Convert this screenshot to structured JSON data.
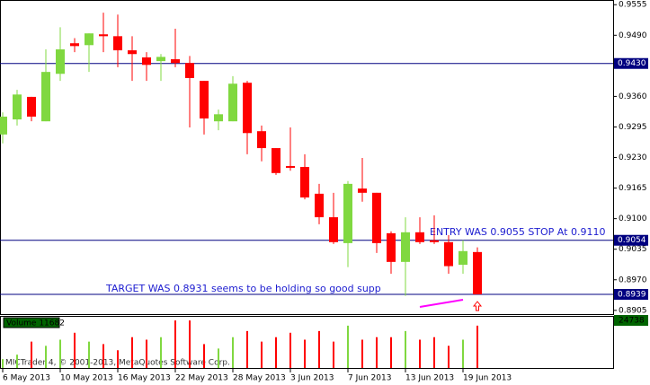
{
  "chart_data": [
    {
      "type": "candlestick",
      "categories": [
        "6 May 2013",
        null,
        null,
        null,
        "10 May 2013",
        null,
        null,
        null,
        "16 May 2013",
        null,
        null,
        null,
        "22 May 2013",
        null,
        null,
        null,
        "28 May 2013",
        null,
        null,
        null,
        "3 Jun 2013",
        null,
        null,
        null,
        "7 Jun 2013",
        null,
        null,
        null,
        "13 Jun 2013",
        null,
        null,
        null,
        "19 Jun 2013",
        null
      ],
      "open": [
        0.9279,
        0.9311,
        0.9359,
        0.9307,
        0.9408,
        0.9473,
        0.9469,
        0.9492,
        0.9488,
        0.9458,
        0.9443,
        0.9435,
        0.9439,
        0.9431,
        0.9393,
        0.9307,
        0.9307,
        0.9389,
        0.9286,
        0.925,
        0.9212,
        0.921,
        0.9153,
        0.9103,
        0.9048,
        0.9164,
        0.9155,
        0.9069,
        0.9008,
        0.9071,
        0.9054,
        0.905,
        0.9002,
        0.9029
      ],
      "high": [
        0.9326,
        0.9374,
        0.9359,
        0.946,
        0.9507,
        0.9484,
        0.9494,
        0.9538,
        0.9534,
        0.9488,
        0.9454,
        0.945,
        0.9504,
        0.9446,
        0.9393,
        0.9332,
        0.9403,
        0.9393,
        0.9298,
        0.925,
        0.9294,
        0.9237,
        0.9174,
        0.9155,
        0.918,
        0.9229,
        0.9155,
        0.9073,
        0.9103,
        0.9103,
        0.9107,
        0.9065,
        0.9054,
        0.9039
      ],
      "low": [
        0.926,
        0.9298,
        0.9307,
        0.9307,
        0.9393,
        0.9454,
        0.9412,
        0.9454,
        0.9422,
        0.9393,
        0.9393,
        0.9393,
        0.9422,
        0.9294,
        0.9279,
        0.9288,
        0.9307,
        0.9237,
        0.9222,
        0.9193,
        0.9202,
        0.9141,
        0.9088,
        0.9046,
        0.8997,
        0.9136,
        0.9027,
        0.8983,
        0.8936,
        0.9046,
        0.9046,
        0.8983,
        0.8983,
        0.8939
      ],
      "close": [
        0.9317,
        0.9364,
        0.9317,
        0.9412,
        0.946,
        0.9467,
        0.9494,
        0.9488,
        0.9458,
        0.945,
        0.9427,
        0.9444,
        0.9431,
        0.9399,
        0.9313,
        0.9322,
        0.9387,
        0.9282,
        0.925,
        0.9197,
        0.9208,
        0.9145,
        0.9103,
        0.905,
        0.9174,
        0.9155,
        0.9048,
        0.9008,
        0.9071,
        0.905,
        0.905,
        0.8999,
        0.9031,
        0.8939
      ],
      "up_color": "#80d840",
      "down_color": "#ff0000",
      "ylim": [
        0.8897,
        0.9565
      ],
      "yticks": [
        0.9555,
        {
          "value": 0.949,
          "label": "0.9490"
        },
        {
          "value": 0.936,
          "label": "0.9360"
        },
        0.9295,
        {
          "value": 0.923,
          "label": "0.9230"
        },
        0.9165,
        {
          "value": 0.91,
          "label": "0.9100"
        },
        0.9035,
        {
          "value": 0.897,
          "label": "0.8970"
        },
        0.8905
      ],
      "hlines": [
        {
          "value": 0.943,
          "label": "0.9430"
        },
        {
          "value": 0.9054,
          "label": "0.9054"
        },
        {
          "value": 0.8939,
          "label": "0.8939"
        }
      ],
      "hline_color": "#000080",
      "annotations": [
        "ENTRY WAS 0.9055 STOP At 0.9110",
        "TARGET WAS 0.8931 seems to be holding so good supp"
      ],
      "watermark": "MICTrader 4, © 2001-2013, MetaQuotes Software Corp."
    },
    {
      "type": "bar",
      "title": "Volume 11682",
      "values": [
        4600,
        6900,
        13700,
        11500,
        14700,
        18300,
        13700,
        12400,
        9200,
        16000,
        14700,
        16000,
        24700,
        24700,
        12400,
        10100,
        16000,
        19200,
        13700,
        16000,
        18300,
        14700,
        19200,
        13700,
        22000,
        14700,
        16000,
        16000,
        19200,
        14700,
        16000,
        11500,
        14700,
        22000
      ],
      "ylim": [
        0,
        24738
      ],
      "yticks": [
        24738
      ]
    }
  ]
}
